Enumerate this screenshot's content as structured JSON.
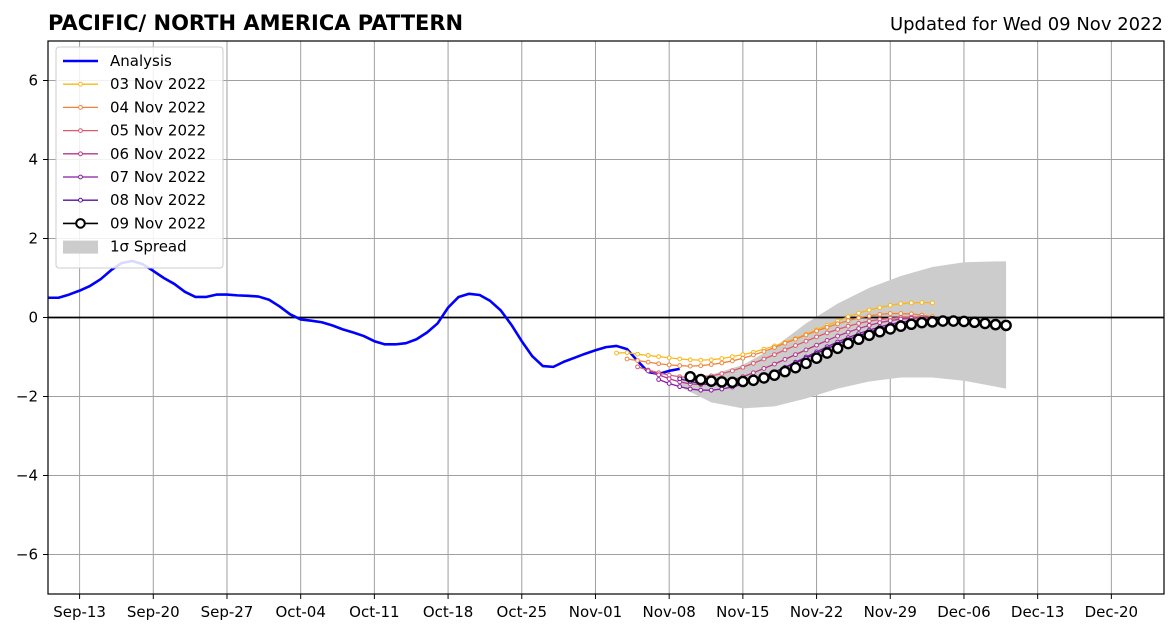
{
  "chart_data": {
    "type": "line",
    "title": "PACIFIC/ NORTH AMERICA PATTERN",
    "subtitle": "Updated for Wed 09 Nov 2022",
    "xlabel": "",
    "ylabel": "",
    "ylim": [
      -7,
      7
    ],
    "xlim": [
      "2022-09-10",
      "2022-12-25"
    ],
    "yticks": [
      -6,
      -4,
      -2,
      0,
      2,
      4,
      6
    ],
    "ytick_labels": [
      "−6",
      "−4",
      "−2",
      "0",
      "2",
      "4",
      "6"
    ],
    "xticks": [
      "2022-09-13",
      "2022-09-20",
      "2022-09-27",
      "2022-10-04",
      "2022-10-11",
      "2022-10-18",
      "2022-10-25",
      "2022-11-01",
      "2022-11-08",
      "2022-11-15",
      "2022-11-22",
      "2022-11-29",
      "2022-12-06",
      "2022-12-13",
      "2022-12-20"
    ],
    "xtick_labels": [
      "Sep-13",
      "Sep-20",
      "Sep-27",
      "Oct-04",
      "Oct-11",
      "Oct-18",
      "Oct-25",
      "Nov-01",
      "Nov-08",
      "Nov-15",
      "Nov-22",
      "Nov-29",
      "Dec-06",
      "Dec-13",
      "Dec-20"
    ],
    "grid": true,
    "legend_position": "upper-left",
    "zero_line": true,
    "analysis": {
      "name": "Analysis",
      "color": "#0000ff",
      "x": [
        "2022-09-10",
        "2022-09-11",
        "2022-09-12",
        "2022-09-13",
        "2022-09-14",
        "2022-09-15",
        "2022-09-16",
        "2022-09-17",
        "2022-09-18",
        "2022-09-19",
        "2022-09-20",
        "2022-09-21",
        "2022-09-22",
        "2022-09-23",
        "2022-09-24",
        "2022-09-25",
        "2022-09-26",
        "2022-09-27",
        "2022-09-28",
        "2022-09-29",
        "2022-09-30",
        "2022-10-01",
        "2022-10-02",
        "2022-10-03",
        "2022-10-04",
        "2022-10-05",
        "2022-10-06",
        "2022-10-07",
        "2022-10-08",
        "2022-10-09",
        "2022-10-10",
        "2022-10-11",
        "2022-10-12",
        "2022-10-13",
        "2022-10-14",
        "2022-10-15",
        "2022-10-16",
        "2022-10-17",
        "2022-10-18",
        "2022-10-19",
        "2022-10-20",
        "2022-10-21",
        "2022-10-22",
        "2022-10-23",
        "2022-10-24",
        "2022-10-25",
        "2022-10-26",
        "2022-10-27",
        "2022-10-28",
        "2022-10-29",
        "2022-10-30",
        "2022-10-31",
        "2022-11-01",
        "2022-11-02",
        "2022-11-03",
        "2022-11-04",
        "2022-11-05",
        "2022-11-06",
        "2022-11-07",
        "2022-11-08",
        "2022-11-09"
      ],
      "y": [
        0.5,
        0.5,
        0.58,
        0.68,
        0.8,
        0.97,
        1.2,
        1.38,
        1.43,
        1.35,
        1.18,
        1.0,
        0.85,
        0.65,
        0.52,
        0.52,
        0.58,
        0.58,
        0.56,
        0.55,
        0.53,
        0.45,
        0.28,
        0.08,
        -0.05,
        -0.08,
        -0.12,
        -0.2,
        -0.3,
        -0.38,
        -0.47,
        -0.6,
        -0.68,
        -0.68,
        -0.65,
        -0.55,
        -0.38,
        -0.15,
        0.25,
        0.52,
        0.6,
        0.57,
        0.42,
        0.18,
        -0.18,
        -0.6,
        -0.98,
        -1.23,
        -1.25,
        -1.12,
        -1.02,
        -0.92,
        -0.83,
        -0.75,
        -0.72,
        -0.8,
        -1.1,
        -1.38,
        -1.43,
        -1.35,
        -1.3
      ]
    },
    "spread": {
      "name": "1σ Spread",
      "color": "#cccccc",
      "x": [
        "2022-11-09",
        "2022-11-12",
        "2022-11-15",
        "2022-11-18",
        "2022-11-21",
        "2022-11-24",
        "2022-11-27",
        "2022-11-30",
        "2022-12-03",
        "2022-12-06",
        "2022-12-09",
        "2022-12-10"
      ],
      "upper": [
        -1.5,
        -1.45,
        -1.2,
        -0.75,
        -0.15,
        0.35,
        0.75,
        1.05,
        1.28,
        1.4,
        1.42,
        1.42
      ],
      "lower": [
        -1.75,
        -2.15,
        -2.3,
        -2.25,
        -2.05,
        -1.8,
        -1.62,
        -1.52,
        -1.52,
        -1.6,
        -1.75,
        -1.8
      ]
    },
    "series": [
      {
        "name": "03 Nov 2022",
        "color": "#fbb61a",
        "start": "2022-11-03",
        "values": [
          -0.9,
          -0.89,
          -0.93,
          -0.96,
          -0.99,
          -1.02,
          -1.05,
          -1.07,
          -1.08,
          -1.07,
          -1.04,
          -0.99,
          -0.94,
          -0.88,
          -0.8,
          -0.72,
          -0.63,
          -0.53,
          -0.42,
          -0.31,
          -0.2,
          -0.09,
          0.02,
          0.11,
          0.19,
          0.25,
          0.31,
          0.35,
          0.37,
          0.38,
          0.37
        ]
      },
      {
        "name": "04 Nov 2022",
        "color": "#f1843a",
        "start": "2022-11-04",
        "values": [
          -1.05,
          -1.09,
          -1.13,
          -1.17,
          -1.2,
          -1.22,
          -1.23,
          -1.22,
          -1.19,
          -1.15,
          -1.1,
          -1.03,
          -0.95,
          -0.86,
          -0.76,
          -0.65,
          -0.55,
          -0.44,
          -0.34,
          -0.25,
          -0.16,
          -0.08,
          -0.01,
          0.04,
          0.08,
          0.1,
          0.1,
          0.09,
          0.06,
          0.02
        ]
      },
      {
        "name": "05 Nov 2022",
        "color": "#dd5a6e",
        "start": "2022-11-05",
        "values": [
          -1.25,
          -1.33,
          -1.4,
          -1.46,
          -1.5,
          -1.52,
          -1.51,
          -1.48,
          -1.42,
          -1.35,
          -1.26,
          -1.16,
          -1.05,
          -0.94,
          -0.82,
          -0.71,
          -0.6,
          -0.49,
          -0.39,
          -0.3,
          -0.22,
          -0.15,
          -0.09,
          -0.05,
          -0.02,
          0.0,
          0.01,
          0.0,
          -0.02
        ]
      },
      {
        "name": "06 Nov 2022",
        "color": "#b6378a",
        "start": "2022-11-06",
        "values": [
          -1.35,
          -1.45,
          -1.55,
          -1.63,
          -1.68,
          -1.7,
          -1.69,
          -1.65,
          -1.58,
          -1.5,
          -1.4,
          -1.29,
          -1.18,
          -1.06,
          -0.94,
          -0.82,
          -0.7,
          -0.58,
          -0.47,
          -0.37,
          -0.28,
          -0.2,
          -0.13,
          -0.08,
          -0.04,
          -0.02,
          -0.01,
          -0.02
        ]
      },
      {
        "name": "07 Nov 2022",
        "color": "#8a1ca4",
        "start": "2022-11-07",
        "values": [
          -1.57,
          -1.67,
          -1.75,
          -1.81,
          -1.84,
          -1.84,
          -1.81,
          -1.76,
          -1.69,
          -1.6,
          -1.5,
          -1.38,
          -1.26,
          -1.13,
          -1.0,
          -0.87,
          -0.74,
          -0.62,
          -0.51,
          -0.41,
          -0.32,
          -0.24,
          -0.17,
          -0.12,
          -0.08,
          -0.06,
          -0.05
        ]
      },
      {
        "name": "08 Nov 2022",
        "color": "#55109a",
        "start": "2022-11-09",
        "values": [
          -1.55,
          -1.62,
          -1.67,
          -1.7,
          -1.7,
          -1.68,
          -1.63,
          -1.56,
          -1.48,
          -1.38,
          -1.27,
          -1.15,
          -1.03,
          -0.91,
          -0.79,
          -0.67,
          -0.56,
          -0.46,
          -0.37,
          -0.29,
          -0.22,
          -0.16,
          -0.12,
          -0.09,
          -0.07
        ]
      },
      {
        "name": "09 Nov 2022",
        "color": "#000000",
        "start": "2022-11-10",
        "values": [
          -1.5,
          -1.57,
          -1.61,
          -1.63,
          -1.64,
          -1.62,
          -1.59,
          -1.53,
          -1.46,
          -1.37,
          -1.27,
          -1.16,
          -1.03,
          -0.9,
          -0.78,
          -0.66,
          -0.55,
          -0.45,
          -0.36,
          -0.29,
          -0.22,
          -0.17,
          -0.13,
          -0.11,
          -0.09,
          -0.09,
          -0.1,
          -0.12,
          -0.15,
          -0.18,
          -0.2
        ]
      }
    ]
  }
}
